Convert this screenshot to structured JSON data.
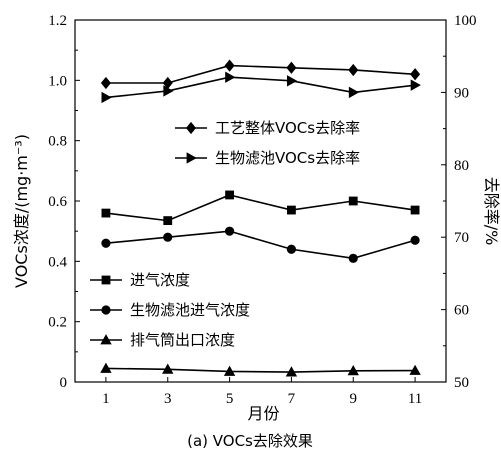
{
  "chart_data": {
    "type": "line",
    "caption": "(a)  VOCs去除效果",
    "xlabel": "月份",
    "ylabel_left": "VOCs浓度/(mg·m⁻³)",
    "ylabel_right": "去除率/%",
    "x": [
      1,
      3,
      5,
      7,
      9,
      11
    ],
    "xlim": [
      0,
      12
    ],
    "ylim_left": [
      0,
      1.2
    ],
    "ylim_right": [
      50,
      100
    ],
    "x_ticks": [
      "1",
      "3",
      "5",
      "7",
      "9",
      "11"
    ],
    "y_ticks_left": [
      "0",
      "0.2",
      "0.4",
      "0.6",
      "0.8",
      "1.0",
      "1.2"
    ],
    "y_ticks_right": [
      "50",
      "60",
      "70",
      "80",
      "90",
      "100"
    ],
    "grid": false,
    "series": [
      {
        "name": "工艺整体VOCs去除率",
        "axis": "right",
        "marker": "diamond",
        "values": [
          91.3,
          91.3,
          93.7,
          93.4,
          93.1,
          92.5
        ]
      },
      {
        "name": "生物滤池VOCs去除率",
        "axis": "right",
        "marker": "triangle-right",
        "values": [
          89.3,
          90.2,
          92.1,
          91.6,
          90.0,
          91.0
        ]
      },
      {
        "name": "进气浓度",
        "axis": "left",
        "marker": "square",
        "values": [
          0.56,
          0.535,
          0.62,
          0.57,
          0.6,
          0.57
        ]
      },
      {
        "name": "生物滤池进气浓度",
        "axis": "left",
        "marker": "circle",
        "values": [
          0.46,
          0.48,
          0.5,
          0.44,
          0.41,
          0.47
        ]
      },
      {
        "name": "排气筒出口浓度",
        "axis": "left",
        "marker": "triangle-up",
        "values": [
          0.045,
          0.042,
          0.035,
          0.033,
          0.037,
          0.038
        ]
      }
    ],
    "legends": [
      {
        "position": "upper-middle",
        "series": [
          0,
          1
        ]
      },
      {
        "position": "lower-left",
        "series": [
          2,
          3,
          4
        ]
      }
    ]
  }
}
